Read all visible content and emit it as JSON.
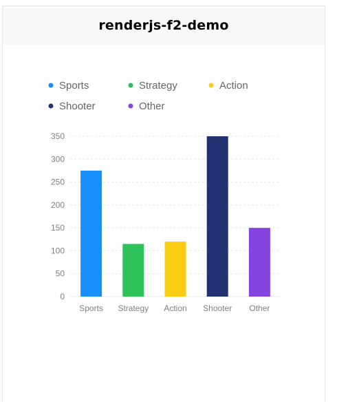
{
  "navbar": {
    "title": "renderjs-f2-demo"
  },
  "chart_data": {
    "type": "bar",
    "categories": [
      "Sports",
      "Strategy",
      "Action",
      "Shooter",
      "Other"
    ],
    "values": [
      275,
      115,
      120,
      350,
      150
    ],
    "colors": [
      "#1890FF",
      "#2FC25B",
      "#FACC14",
      "#223273",
      "#8543E0"
    ],
    "legend": {
      "placement": "top-left",
      "entries": [
        "Sports",
        "Strategy",
        "Action",
        "Shooter",
        "Other"
      ]
    },
    "y_ticks": [
      0,
      50,
      100,
      150,
      200,
      250,
      300,
      350
    ],
    "ylim": [
      0,
      350
    ],
    "grid": true,
    "title": "",
    "xlabel": "",
    "ylabel": ""
  }
}
